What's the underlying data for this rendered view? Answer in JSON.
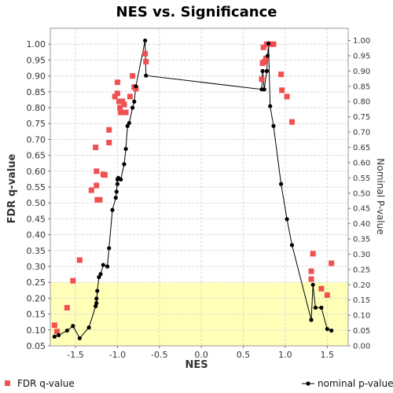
{
  "chart_data": {
    "type": "scatter",
    "title": "NES vs. Significance",
    "xlabel": "NES",
    "ylabel_left": "FDR q-value",
    "ylabel_right": "Nominal P-value",
    "xlim": [
      -1.8,
      1.75
    ],
    "ylim_left": [
      0.05,
      1.05
    ],
    "ylim_right": [
      0.0,
      1.04
    ],
    "xticks": [
      "-1.5",
      "-1.0",
      "-0.5",
      "0.0",
      "0.5",
      "1.0",
      "1.5"
    ],
    "yticks_left": [
      "0.05",
      "0.10",
      "0.15",
      "0.20",
      "0.25",
      "0.30",
      "0.35",
      "0.40",
      "0.45",
      "0.50",
      "0.55",
      "0.60",
      "0.65",
      "0.70",
      "0.75",
      "0.80",
      "0.85",
      "0.90",
      "0.95",
      "1.00"
    ],
    "yticks_right": [
      "0.00",
      "0.05",
      "0.10",
      "0.15",
      "0.20",
      "0.25",
      "0.30",
      "0.35",
      "0.40",
      "0.45",
      "0.50",
      "0.55",
      "0.60",
      "0.65",
      "0.70",
      "0.75",
      "0.80",
      "0.85",
      "0.90",
      "0.95",
      "1.00"
    ],
    "grid": true,
    "highlight_band": {
      "axis": "FDR q-value",
      "from": 0.05,
      "to": 0.25,
      "color": "#ffffb8"
    },
    "series": [
      {
        "name": "FDR q-value",
        "kind": "scatter",
        "axis": "left",
        "color": "#f05050",
        "points": [
          [
            -1.75,
            0.115
          ],
          [
            -1.72,
            0.095
          ],
          [
            -1.6,
            0.17
          ],
          [
            -1.53,
            0.255
          ],
          [
            -1.45,
            0.32
          ],
          [
            -1.31,
            0.54
          ],
          [
            -1.26,
            0.675
          ],
          [
            -1.25,
            0.6
          ],
          [
            -1.25,
            0.555
          ],
          [
            -1.24,
            0.51
          ],
          [
            -1.21,
            0.51
          ],
          [
            -1.17,
            0.59
          ],
          [
            -1.15,
            0.588
          ],
          [
            -1.1,
            0.73
          ],
          [
            -1.1,
            0.69
          ],
          [
            -1.03,
            0.835
          ],
          [
            -1.0,
            0.845
          ],
          [
            -1.0,
            0.88
          ],
          [
            -0.98,
            0.82
          ],
          [
            -0.97,
            0.8
          ],
          [
            -0.96,
            0.785
          ],
          [
            -0.94,
            0.82
          ],
          [
            -0.92,
            0.81
          ],
          [
            -0.9,
            0.785
          ],
          [
            -0.85,
            0.835
          ],
          [
            -0.82,
            0.9
          ],
          [
            -0.8,
            0.865
          ],
          [
            -0.78,
            0.86
          ],
          [
            -0.67,
            0.97
          ],
          [
            -0.66,
            0.945
          ],
          [
            0.72,
            0.89
          ],
          [
            0.73,
            0.94
          ],
          [
            0.74,
            0.99
          ],
          [
            0.75,
            0.945
          ],
          [
            0.77,
            0.955
          ],
          [
            0.78,
            1.0
          ],
          [
            0.8,
            1.0
          ],
          [
            0.82,
            1.0
          ],
          [
            0.86,
            1.0
          ],
          [
            0.95,
            0.905
          ],
          [
            0.96,
            0.855
          ],
          [
            1.02,
            0.835
          ],
          [
            1.08,
            0.755
          ],
          [
            1.31,
            0.26
          ],
          [
            1.31,
            0.285
          ],
          [
            1.33,
            0.34
          ],
          [
            1.43,
            0.23
          ],
          [
            1.5,
            0.21
          ],
          [
            1.55,
            0.31
          ]
        ]
      },
      {
        "name": "nominal p-value",
        "kind": "line",
        "axis": "right",
        "color": "#000000",
        "points": [
          [
            -1.75,
            0.03
          ],
          [
            -1.7,
            0.035
          ],
          [
            -1.6,
            0.05
          ],
          [
            -1.53,
            0.065
          ],
          [
            -1.45,
            0.025
          ],
          [
            -1.34,
            0.06
          ],
          [
            -1.26,
            0.13
          ],
          [
            -1.25,
            0.155
          ],
          [
            -1.25,
            0.14
          ],
          [
            -1.24,
            0.18
          ],
          [
            -1.22,
            0.225
          ],
          [
            -1.2,
            0.235
          ],
          [
            -1.17,
            0.265
          ],
          [
            -1.12,
            0.26
          ],
          [
            -1.1,
            0.32
          ],
          [
            -1.06,
            0.445
          ],
          [
            -1.02,
            0.485
          ],
          [
            -1.01,
            0.505
          ],
          [
            -1.0,
            0.545
          ],
          [
            -1.0,
            0.53
          ],
          [
            -0.99,
            0.55
          ],
          [
            -0.96,
            0.545
          ],
          [
            -0.92,
            0.595
          ],
          [
            -0.9,
            0.645
          ],
          [
            -0.88,
            0.72
          ],
          [
            -0.86,
            0.73
          ],
          [
            -0.82,
            0.78
          ],
          [
            -0.8,
            0.8
          ],
          [
            -0.78,
            0.85
          ],
          [
            -0.67,
            1.0
          ],
          [
            -0.66,
            0.885
          ],
          [
            0.72,
            0.84
          ],
          [
            0.73,
            0.9
          ],
          [
            0.75,
            0.84
          ],
          [
            0.78,
            0.9
          ],
          [
            0.79,
            0.95
          ],
          [
            0.8,
            0.99
          ],
          [
            0.82,
            0.785
          ],
          [
            0.86,
            0.72
          ],
          [
            0.95,
            0.53
          ],
          [
            1.02,
            0.415
          ],
          [
            1.08,
            0.33
          ],
          [
            1.31,
            0.085
          ],
          [
            1.33,
            0.2
          ],
          [
            1.36,
            0.125
          ],
          [
            1.43,
            0.125
          ],
          [
            1.5,
            0.055
          ],
          [
            1.55,
            0.05
          ]
        ]
      }
    ],
    "legend_placement": "bottom"
  }
}
